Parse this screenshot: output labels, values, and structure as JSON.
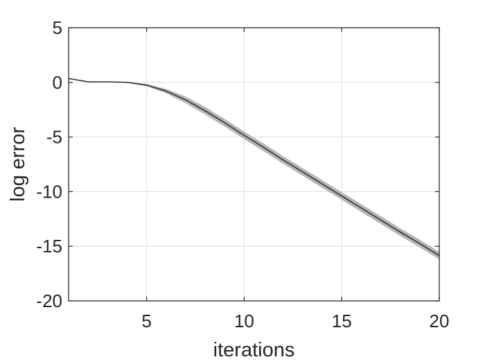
{
  "chart_data": {
    "type": "line",
    "title": "",
    "xlabel": "iterations",
    "ylabel": "log error",
    "xlim": [
      1,
      20
    ],
    "ylim": [
      -20,
      5
    ],
    "xticks": [
      5,
      10,
      15,
      20
    ],
    "yticks": [
      5,
      0,
      -5,
      -10,
      -15,
      -20
    ],
    "grid": true,
    "legend": "none",
    "series": [
      {
        "x": [
          1,
          2,
          3,
          4,
          5,
          6,
          7,
          8,
          9,
          10,
          11,
          12,
          13,
          14,
          15,
          16,
          17,
          18,
          19,
          20
        ],
        "y": [
          0.35,
          0.05,
          0.05,
          0.0,
          -0.25,
          -0.8,
          -1.6,
          -2.6,
          -3.7,
          -4.85,
          -5.95,
          -7.1,
          -8.2,
          -9.3,
          -10.4,
          -11.5,
          -12.6,
          -13.7,
          -14.75,
          -15.85
        ],
        "band_lower": [
          0.35,
          0.05,
          0.05,
          -0.05,
          -0.35,
          -1.0,
          -1.9,
          -2.95,
          -4.05,
          -5.2,
          -6.3,
          -7.45,
          -8.55,
          -9.65,
          -10.75,
          -11.85,
          -12.95,
          -14.05,
          -15.1,
          -16.2
        ],
        "band_upper": [
          0.35,
          0.05,
          0.05,
          0.05,
          -0.15,
          -0.6,
          -1.3,
          -2.25,
          -3.35,
          -4.5,
          -5.6,
          -6.75,
          -7.85,
          -8.95,
          -10.05,
          -11.15,
          -12.25,
          -13.35,
          -14.4,
          -15.5
        ]
      }
    ],
    "colors": {
      "line": "#2b2b2b",
      "band": "#b5b5b5",
      "grid": "#dddddd",
      "axis": "#262626"
    }
  }
}
